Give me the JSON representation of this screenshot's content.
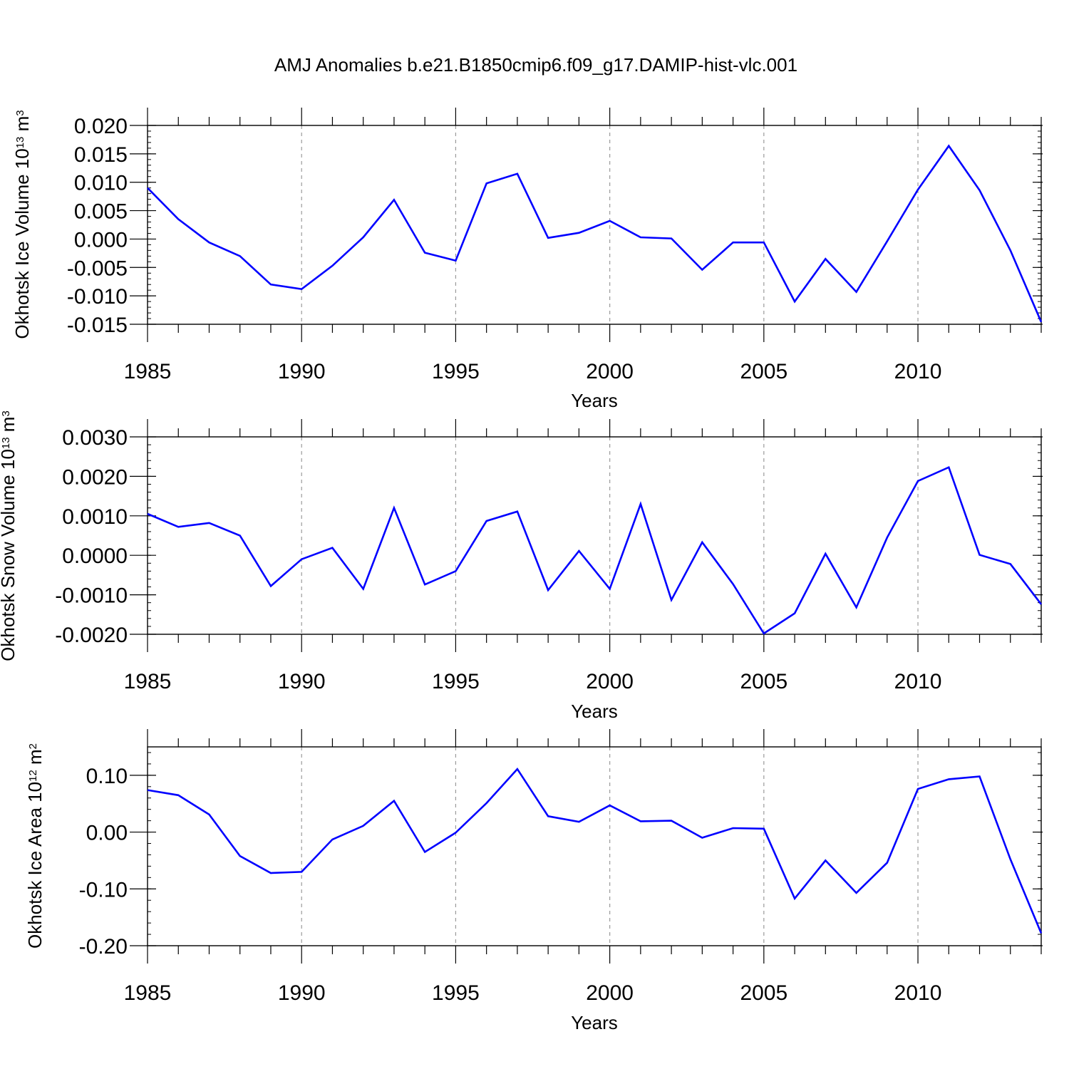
{
  "figure": {
    "title": "AMJ Anomalies b.e21.B1850cmip6.f09_g17.DAMIP-hist-vlc.001",
    "line_color": "#0000ff",
    "grid_color": "#9a9a9a"
  },
  "chart_data": [
    {
      "type": "line",
      "title": "AMJ Anomalies b.e21.B1850cmip6.f09_g17.DAMIP-hist-vlc.001",
      "xlabel": "Years",
      "ylabel": "Okhotsk Ice Volume",
      "ylabel_unit": {
        "scale": "10",
        "scale_exp": "13",
        "unit": "m",
        "unit_exp": "3"
      },
      "xlim": [
        1985,
        2014
      ],
      "ylim": [
        -0.015,
        0.02
      ],
      "xticks": [
        1985,
        1990,
        1995,
        2000,
        2005,
        2010
      ],
      "xtick_labels": [
        "1985",
        "1990",
        "1995",
        "2000",
        "2005",
        "2010"
      ],
      "yticks": [
        -0.015,
        -0.01,
        -0.005,
        0.0,
        0.005,
        0.01,
        0.015,
        0.02
      ],
      "ytick_labels": [
        "-0.015",
        "-0.010",
        "-0.005",
        "0.000",
        "0.005",
        "0.010",
        "0.015",
        "0.020"
      ],
      "grid": "vertical dashed at labeled years",
      "x": [
        1985,
        1986,
        1987,
        1988,
        1989,
        1990,
        1991,
        1992,
        1993,
        1994,
        1995,
        1996,
        1997,
        1998,
        1999,
        2000,
        2001,
        2002,
        2003,
        2004,
        2005,
        2006,
        2007,
        2008,
        2009,
        2010,
        2011,
        2012,
        2013,
        2014
      ],
      "series": [
        {
          "values": [
            0.009,
            0.0035,
            -0.0006,
            -0.003,
            -0.008,
            -0.0088,
            -0.0047,
            0.0003,
            0.0069,
            -0.0024,
            -0.0038,
            0.0098,
            0.0115,
            0.0002,
            0.0011,
            0.0032,
            0.0003,
            0.0001,
            -0.0054,
            -0.0006,
            -0.0006,
            -0.011,
            -0.0035,
            -0.0093,
            -0.0004,
            0.0087,
            0.0164,
            0.0086,
            -0.002,
            -0.0146
          ]
        }
      ]
    },
    {
      "type": "line",
      "xlabel": "Years",
      "ylabel": "Okhotsk Snow Volume",
      "ylabel_unit": {
        "scale": "10",
        "scale_exp": "13",
        "unit": "m",
        "unit_exp": "3"
      },
      "xlim": [
        1985,
        2014
      ],
      "ylim": [
        -0.002,
        0.003
      ],
      "xticks": [
        1985,
        1990,
        1995,
        2000,
        2005,
        2010
      ],
      "xtick_labels": [
        "1985",
        "1990",
        "1995",
        "2000",
        "2005",
        "2010"
      ],
      "yticks": [
        -0.002,
        -0.001,
        0.0,
        0.001,
        0.002,
        0.003
      ],
      "ytick_labels": [
        "-0.0020",
        "-0.0010",
        "0.0000",
        "0.0010",
        "0.0020",
        "0.0030"
      ],
      "grid": "vertical dashed at labeled years",
      "x": [
        1985,
        1986,
        1987,
        1988,
        1989,
        1990,
        1991,
        1992,
        1993,
        1994,
        1995,
        1996,
        1997,
        1998,
        1999,
        2000,
        2001,
        2002,
        2003,
        2004,
        2005,
        2006,
        2007,
        2008,
        2009,
        2010,
        2011,
        2012,
        2013,
        2014
      ],
      "series": [
        {
          "values": [
            0.00105,
            0.00072,
            0.00082,
            0.0005,
            -0.00078,
            -0.0001,
            0.00019,
            -0.00085,
            0.0012,
            -0.00074,
            -0.0004,
            0.00087,
            0.00111,
            -0.00088,
            0.00011,
            -0.00085,
            0.0013,
            -0.00113,
            0.00033,
            -0.00073,
            -0.00198,
            -0.00147,
            4e-05,
            -0.00132,
            0.00045,
            0.00188,
            0.00223,
            1e-05,
            -0.00022,
            -0.00124
          ]
        }
      ]
    },
    {
      "type": "line",
      "xlabel": "Years",
      "ylabel": "Okhotsk Ice Area",
      "ylabel_unit": {
        "scale": "10",
        "scale_exp": "12",
        "unit": "m",
        "unit_exp": "2"
      },
      "xlim": [
        1985,
        2014
      ],
      "ylim": [
        -0.2,
        0.15
      ],
      "xticks": [
        1985,
        1990,
        1995,
        2000,
        2005,
        2010
      ],
      "xtick_labels": [
        "1985",
        "1990",
        "1995",
        "2000",
        "2005",
        "2010"
      ],
      "yticks": [
        -0.2,
        -0.1,
        0.0,
        0.1
      ],
      "ytick_labels": [
        "-0.20",
        "-0.10",
        "0.00",
        "0.10"
      ],
      "grid": "vertical dashed at labeled years",
      "x": [
        1985,
        1986,
        1987,
        1988,
        1989,
        1990,
        1991,
        1992,
        1993,
        1994,
        1995,
        1996,
        1997,
        1998,
        1999,
        2000,
        2001,
        2002,
        2003,
        2004,
        2005,
        2006,
        2007,
        2008,
        2009,
        2010,
        2011,
        2012,
        2013,
        2014
      ],
      "series": [
        {
          "values": [
            0.074,
            0.065,
            0.031,
            -0.042,
            -0.072,
            -0.07,
            -0.013,
            0.011,
            0.055,
            -0.035,
            -0.001,
            0.051,
            0.111,
            0.028,
            0.018,
            0.047,
            0.019,
            0.02,
            -0.01,
            0.007,
            0.006,
            -0.117,
            -0.05,
            -0.107,
            -0.054,
            0.076,
            0.093,
            0.098,
            -0.048,
            -0.178
          ]
        }
      ]
    }
  ]
}
